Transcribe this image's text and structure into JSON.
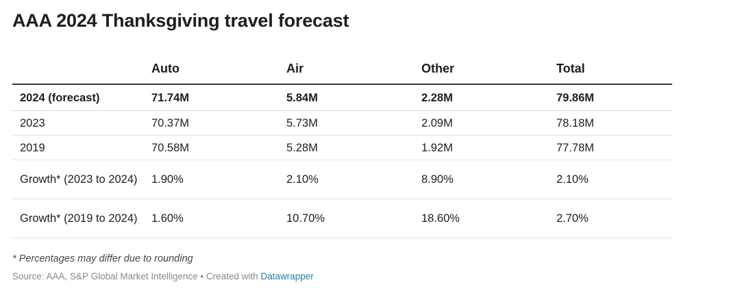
{
  "title": "AAA 2024 Thanksgiving travel forecast",
  "footnote": "* Percentages may differ due to rounding",
  "source": {
    "text": "Source: AAA, S&P Global Market Intelligence • Created with ",
    "link": "Datawrapper"
  },
  "colors": {
    "text": "#1d1d1d",
    "header_rule": "#333333",
    "row_rule": "#e2e2e2",
    "muted": "#888888",
    "link": "#1d81a2"
  },
  "chart_data": {
    "type": "table",
    "title": "AAA 2024 Thanksgiving travel forecast",
    "columns": [
      "",
      "Auto",
      "Air",
      "Other",
      "Total"
    ],
    "rows": [
      {
        "label": "2024 (forecast)",
        "bold": true,
        "cells": [
          "71.74M",
          "5.84M",
          "2.28M",
          "79.86M"
        ]
      },
      {
        "label": "2023",
        "bold": false,
        "cells": [
          "70.37M",
          "5.73M",
          "2.09M",
          "78.18M"
        ]
      },
      {
        "label": "2019",
        "bold": false,
        "cells": [
          "70.58M",
          "5.28M",
          "1.92M",
          "77.78M"
        ]
      },
      {
        "label": "Growth* (2023 to 2024)",
        "bold": false,
        "cells": [
          "1.90%",
          "2.10%",
          "8.90%",
          "2.10%"
        ]
      },
      {
        "label": "Growth* (2019 to 2024)",
        "bold": false,
        "cells": [
          "1.60%",
          "10.70%",
          "18.60%",
          "2.70%"
        ]
      }
    ]
  }
}
